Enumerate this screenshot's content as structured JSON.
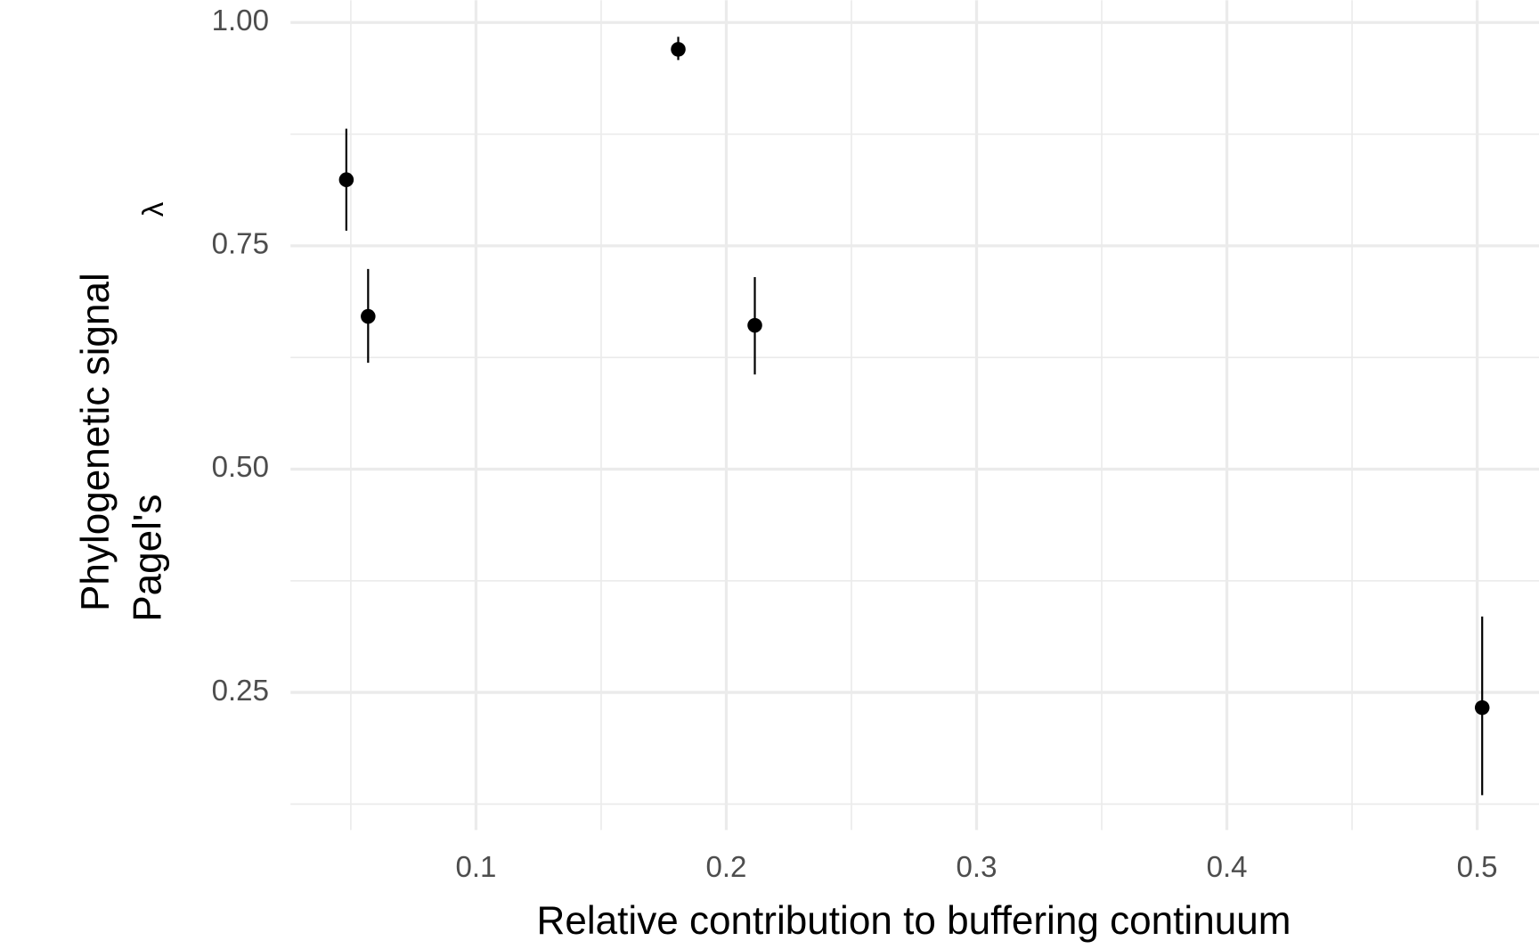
{
  "chart_data": {
    "type": "scatter",
    "x_label": "Relative contribution to buffering continuum",
    "y_label": [
      "Phylogenetic signal",
      "Pagel's",
      "λ"
    ],
    "x": [
      0.0482,
      0.0569,
      0.1808,
      0.2114,
      0.502
    ],
    "values": [
      0.824,
      0.671,
      0.97,
      0.661,
      0.233
    ],
    "ymin": [
      0.767,
      0.619,
      0.958,
      0.606,
      0.135
    ],
    "ymax": [
      0.881,
      0.724,
      0.984,
      0.715,
      0.335
    ],
    "color": "#000000",
    "xlim": [
      0.0259,
      0.5247
    ],
    "ylim": [
      0.096,
      1.025
    ],
    "xticks": [
      0.1,
      0.2,
      0.3,
      0.4,
      0.5
    ],
    "yticks": [
      {
        "value": 0.25,
        "label": "0.25"
      },
      {
        "value": 0.5,
        "label": "0.50"
      },
      {
        "value": 0.75,
        "label": "0.75"
      },
      {
        "value": 1,
        "label": "1.00"
      }
    ],
    "x_minor_ticks": [
      0.05,
      0.15,
      0.25,
      0.35,
      0.45
    ],
    "y_minor_ticks": [
      0.125,
      0.375,
      0.625,
      0.875
    ],
    "grid": true
  }
}
